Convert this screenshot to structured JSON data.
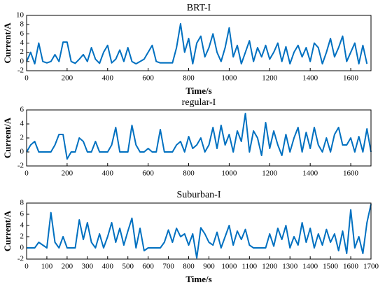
{
  "chart_data": [
    {
      "type": "line",
      "title": "BRT-I",
      "xlabel": "Time/s",
      "ylabel": "Current/A",
      "color": "#0070c0",
      "xlim": [
        0,
        1700
      ],
      "xticks": [
        0,
        200,
        400,
        600,
        800,
        1000,
        1200,
        1400,
        1600
      ],
      "ylim": [
        -2,
        10
      ],
      "yticks": [
        -2,
        0,
        2,
        4,
        6,
        8,
        10
      ],
      "x": [
        0,
        20,
        40,
        60,
        80,
        100,
        120,
        140,
        160,
        180,
        200,
        220,
        240,
        260,
        280,
        300,
        320,
        340,
        360,
        380,
        400,
        420,
        440,
        460,
        480,
        500,
        520,
        540,
        560,
        580,
        600,
        620,
        640,
        660,
        680,
        700,
        720,
        740,
        760,
        780,
        800,
        820,
        840,
        860,
        880,
        900,
        920,
        940,
        960,
        980,
        1000,
        1020,
        1040,
        1060,
        1080,
        1100,
        1120,
        1140,
        1160,
        1180,
        1200,
        1220,
        1240,
        1260,
        1280,
        1300,
        1320,
        1340,
        1360,
        1380,
        1400,
        1420,
        1440,
        1460,
        1480,
        1500,
        1520,
        1540,
        1560,
        1580,
        1600,
        1620,
        1640,
        1660,
        1680
      ],
      "values": [
        0,
        2,
        -0.5,
        4,
        0,
        -0.3,
        0,
        1.5,
        0,
        4.2,
        4.2,
        0,
        -0.4,
        0.5,
        1.5,
        0,
        3,
        0.5,
        -0.4,
        2,
        3.5,
        -0.3,
        0.5,
        2.5,
        0,
        3,
        0,
        -0.5,
        0,
        0.5,
        2,
        3.5,
        0,
        -0.3,
        -0.3,
        -0.3,
        -0.3,
        3,
        8.2,
        2,
        5,
        -0.5,
        4,
        5.5,
        1,
        3,
        6,
        2,
        0,
        3,
        7.3,
        1,
        3.5,
        -0.5,
        2,
        4.5,
        0,
        3,
        1,
        3.5,
        0.5,
        2,
        4,
        0,
        3.2,
        -0.5,
        2,
        3.5,
        1,
        3,
        0,
        4,
        3,
        -0.5,
        2,
        5,
        1,
        3,
        5.5,
        0,
        2,
        4,
        -0.5,
        3.5,
        -0.5
      ]
    },
    {
      "type": "line",
      "title": "regular-I",
      "ylabel": "Current/A",
      "color": "#0070c0",
      "xlim": [
        0,
        1700
      ],
      "xticks": [
        0,
        200,
        400,
        600,
        800,
        1000,
        1200,
        1400,
        1600
      ],
      "ylim": [
        -2,
        6
      ],
      "yticks": [
        -2,
        0,
        2,
        4,
        6
      ],
      "x": [
        0,
        20,
        40,
        60,
        80,
        100,
        120,
        140,
        160,
        180,
        200,
        220,
        240,
        260,
        280,
        300,
        320,
        340,
        360,
        380,
        400,
        420,
        440,
        460,
        480,
        500,
        520,
        540,
        560,
        580,
        600,
        620,
        640,
        660,
        680,
        700,
        720,
        740,
        760,
        780,
        800,
        820,
        840,
        860,
        880,
        900,
        920,
        940,
        960,
        980,
        1000,
        1020,
        1040,
        1060,
        1080,
        1100,
        1120,
        1140,
        1160,
        1180,
        1200,
        1220,
        1240,
        1260,
        1280,
        1300,
        1320,
        1340,
        1360,
        1380,
        1400,
        1420,
        1440,
        1460,
        1480,
        1500,
        1520,
        1540,
        1560,
        1580,
        1600,
        1620,
        1640,
        1660,
        1680,
        1700
      ],
      "values": [
        0,
        1,
        1.5,
        0,
        0,
        0,
        0,
        1,
        2.5,
        2.5,
        -1,
        0,
        0,
        2,
        1.5,
        0,
        0,
        1.5,
        0,
        0,
        0,
        1,
        3.5,
        0,
        0,
        0,
        3.8,
        1,
        0,
        0,
        0.5,
        0,
        0,
        3.2,
        0,
        0,
        0,
        1,
        1.5,
        0,
        2.2,
        0.5,
        1,
        2,
        0,
        1,
        3.5,
        0.5,
        3.8,
        1,
        2.5,
        0,
        3,
        1.5,
        5.5,
        0,
        3,
        2,
        -0.5,
        4.2,
        0.5,
        3,
        1,
        -0.5,
        2.5,
        0,
        2,
        3.5,
        0,
        2.8,
        0.5,
        3.5,
        1,
        0,
        2,
        0,
        2.5,
        3.5,
        1,
        1,
        2,
        0,
        2.2,
        0,
        3.3,
        0
      ]
    },
    {
      "type": "line",
      "title": "Suburban-I",
      "xlabel": "Time/s",
      "ylabel": "Current/A",
      "color": "#0070c0",
      "xlim": [
        0,
        1700
      ],
      "xticks": [
        0,
        100,
        200,
        300,
        400,
        500,
        600,
        700,
        800,
        900,
        1000,
        1100,
        1200,
        1300,
        1400,
        1500,
        1600,
        1700
      ],
      "ylim": [
        -2,
        8
      ],
      "yticks": [
        -2,
        0,
        2,
        4,
        6,
        8
      ],
      "x": [
        0,
        20,
        40,
        60,
        80,
        100,
        120,
        140,
        160,
        180,
        200,
        220,
        240,
        260,
        280,
        300,
        320,
        340,
        360,
        380,
        400,
        420,
        440,
        460,
        480,
        500,
        520,
        540,
        560,
        580,
        600,
        620,
        640,
        660,
        680,
        700,
        720,
        740,
        760,
        780,
        800,
        820,
        840,
        860,
        880,
        900,
        920,
        940,
        960,
        980,
        1000,
        1020,
        1040,
        1060,
        1080,
        1100,
        1120,
        1140,
        1160,
        1180,
        1200,
        1220,
        1240,
        1260,
        1280,
        1300,
        1320,
        1340,
        1360,
        1380,
        1400,
        1420,
        1440,
        1460,
        1480,
        1500,
        1520,
        1540,
        1560,
        1580,
        1600,
        1620,
        1640,
        1660,
        1680,
        1700
      ],
      "values": [
        0,
        0,
        0,
        1,
        0.5,
        0,
        6.3,
        1,
        0,
        2,
        0,
        0,
        0,
        5,
        1.5,
        4.5,
        1,
        0,
        2.5,
        0,
        2,
        4.5,
        1,
        3.5,
        0.5,
        3,
        5.3,
        0,
        3.5,
        -0.5,
        0,
        0,
        0,
        0,
        1,
        3.2,
        1,
        3.5,
        2,
        2.5,
        0.5,
        2.5,
        -1.8,
        3.6,
        2.5,
        1,
        0.5,
        2.8,
        0,
        2,
        4,
        0.5,
        3,
        1.5,
        3.3,
        0.5,
        0,
        0,
        0,
        0,
        2.5,
        0.3,
        3.5,
        1.5,
        4,
        0,
        2,
        0.5,
        4.5,
        1,
        3.5,
        0,
        2.5,
        0.5,
        3.3,
        1,
        2.5,
        -0.5,
        3,
        -1,
        6.8,
        0,
        2,
        -1,
        4.5,
        7.8
      ]
    }
  ]
}
